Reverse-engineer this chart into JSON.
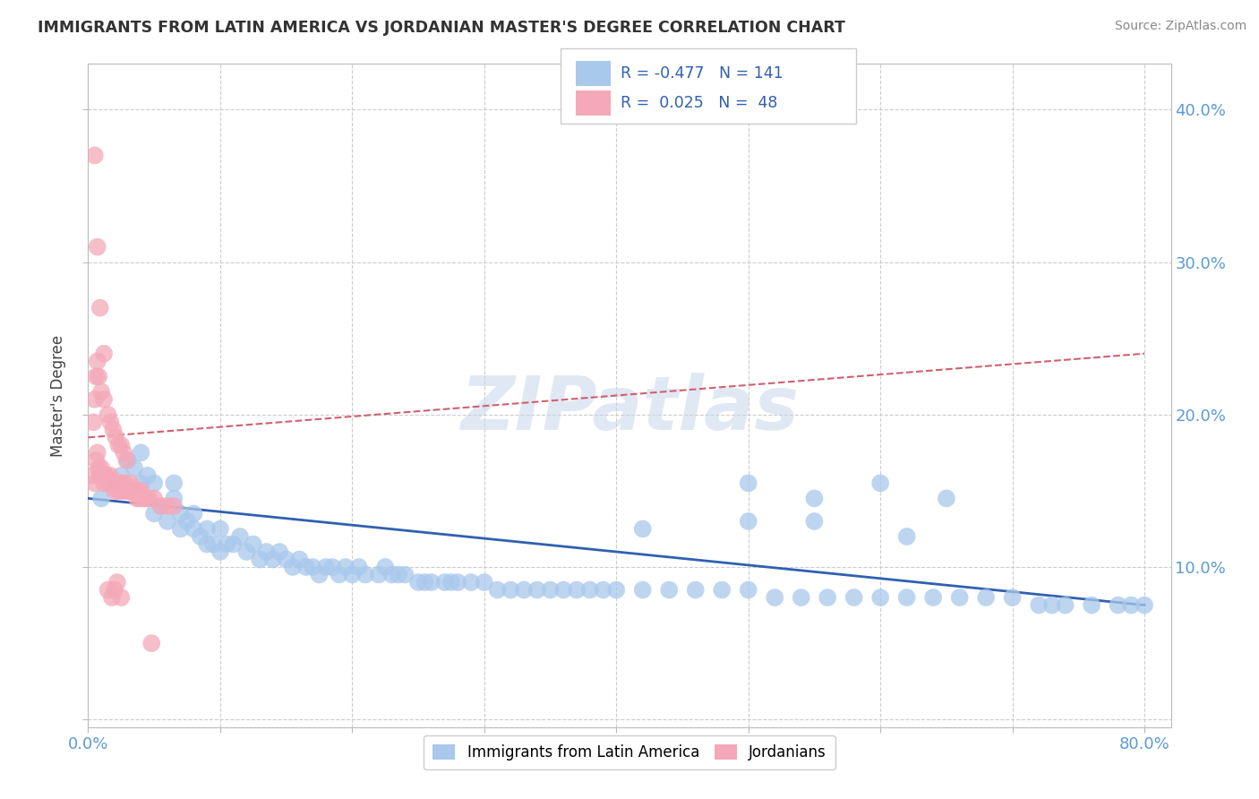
{
  "title": "IMMIGRANTS FROM LATIN AMERICA VS JORDANIAN MASTER'S DEGREE CORRELATION CHART",
  "source": "Source: ZipAtlas.com",
  "ylabel": "Master's Degree",
  "xlim": [
    0.0,
    0.82
  ],
  "ylim": [
    -0.005,
    0.43
  ],
  "xticks": [
    0.0,
    0.1,
    0.2,
    0.3,
    0.4,
    0.5,
    0.6,
    0.7,
    0.8
  ],
  "yticks": [
    0.0,
    0.1,
    0.2,
    0.3,
    0.4
  ],
  "grid_color": "#cccccc",
  "background_color": "#ffffff",
  "title_color": "#333333",
  "tick_color": "#5b9bd5",
  "watermark": "ZIPatlas",
  "legend_r1": "R = -0.477",
  "legend_n1": "N = 141",
  "legend_r2": "R =  0.025",
  "legend_n2": "N =  48",
  "series1_color": "#a8c8ec",
  "series2_color": "#f4a8b8",
  "trend1_color": "#3060b0",
  "trend2_color": "#d06070",
  "series1_label": "Immigrants from Latin America",
  "series2_label": "Jordanians",
  "blue_scatter_x": [
    0.01,
    0.02,
    0.025,
    0.03,
    0.035,
    0.04,
    0.04,
    0.045,
    0.05,
    0.05,
    0.055,
    0.06,
    0.065,
    0.065,
    0.07,
    0.07,
    0.075,
    0.08,
    0.08,
    0.085,
    0.09,
    0.09,
    0.095,
    0.1,
    0.1,
    0.105,
    0.11,
    0.115,
    0.12,
    0.125,
    0.13,
    0.135,
    0.14,
    0.145,
    0.15,
    0.155,
    0.16,
    0.165,
    0.17,
    0.175,
    0.18,
    0.185,
    0.19,
    0.195,
    0.2,
    0.205,
    0.21,
    0.22,
    0.225,
    0.23,
    0.235,
    0.24,
    0.25,
    0.255,
    0.26,
    0.27,
    0.275,
    0.28,
    0.29,
    0.3,
    0.31,
    0.32,
    0.33,
    0.34,
    0.35,
    0.36,
    0.37,
    0.38,
    0.39,
    0.4,
    0.42,
    0.44,
    0.46,
    0.48,
    0.5,
    0.52,
    0.54,
    0.56,
    0.58,
    0.6,
    0.62,
    0.64,
    0.66,
    0.68,
    0.7,
    0.72,
    0.73,
    0.74,
    0.76,
    0.78,
    0.79,
    0.8,
    0.5,
    0.55,
    0.6,
    0.65,
    0.5,
    0.42,
    0.55,
    0.62
  ],
  "blue_scatter_y": [
    0.145,
    0.155,
    0.16,
    0.17,
    0.165,
    0.155,
    0.175,
    0.16,
    0.135,
    0.155,
    0.14,
    0.13,
    0.145,
    0.155,
    0.125,
    0.135,
    0.13,
    0.125,
    0.135,
    0.12,
    0.115,
    0.125,
    0.115,
    0.11,
    0.125,
    0.115,
    0.115,
    0.12,
    0.11,
    0.115,
    0.105,
    0.11,
    0.105,
    0.11,
    0.105,
    0.1,
    0.105,
    0.1,
    0.1,
    0.095,
    0.1,
    0.1,
    0.095,
    0.1,
    0.095,
    0.1,
    0.095,
    0.095,
    0.1,
    0.095,
    0.095,
    0.095,
    0.09,
    0.09,
    0.09,
    0.09,
    0.09,
    0.09,
    0.09,
    0.09,
    0.085,
    0.085,
    0.085,
    0.085,
    0.085,
    0.085,
    0.085,
    0.085,
    0.085,
    0.085,
    0.085,
    0.085,
    0.085,
    0.085,
    0.085,
    0.08,
    0.08,
    0.08,
    0.08,
    0.08,
    0.08,
    0.08,
    0.08,
    0.08,
    0.08,
    0.075,
    0.075,
    0.075,
    0.075,
    0.075,
    0.075,
    0.075,
    0.155,
    0.145,
    0.155,
    0.145,
    0.13,
    0.125,
    0.13,
    0.12
  ],
  "pink_scatter_x": [
    0.003,
    0.005,
    0.006,
    0.007,
    0.008,
    0.009,
    0.01,
    0.011,
    0.012,
    0.013,
    0.014,
    0.015,
    0.016,
    0.017,
    0.018,
    0.019,
    0.02,
    0.021,
    0.022,
    0.023,
    0.024,
    0.025,
    0.026,
    0.027,
    0.028,
    0.029,
    0.03,
    0.031,
    0.032,
    0.033,
    0.035,
    0.036,
    0.037,
    0.038,
    0.039,
    0.04,
    0.042,
    0.044,
    0.046,
    0.048,
    0.05,
    0.055,
    0.06,
    0.065,
    0.005,
    0.007,
    0.009,
    0.012
  ],
  "pink_scatter_y": [
    0.16,
    0.155,
    0.17,
    0.175,
    0.165,
    0.16,
    0.165,
    0.16,
    0.155,
    0.16,
    0.16,
    0.155,
    0.155,
    0.16,
    0.155,
    0.155,
    0.15,
    0.155,
    0.15,
    0.155,
    0.15,
    0.155,
    0.15,
    0.15,
    0.155,
    0.15,
    0.15,
    0.15,
    0.155,
    0.15,
    0.15,
    0.15,
    0.145,
    0.15,
    0.145,
    0.15,
    0.145,
    0.145,
    0.145,
    0.05,
    0.145,
    0.14,
    0.14,
    0.14,
    0.37,
    0.31,
    0.27,
    0.24
  ],
  "pink_extra_x": [
    0.004,
    0.005,
    0.006,
    0.007,
    0.008,
    0.01,
    0.012,
    0.015,
    0.017,
    0.019,
    0.021,
    0.023,
    0.025,
    0.027,
    0.029,
    0.018,
    0.022,
    0.015,
    0.02,
    0.025
  ],
  "pink_extra_y": [
    0.195,
    0.21,
    0.225,
    0.235,
    0.225,
    0.215,
    0.21,
    0.2,
    0.195,
    0.19,
    0.185,
    0.18,
    0.18,
    0.175,
    0.17,
    0.08,
    0.09,
    0.085,
    0.085,
    0.08
  ],
  "trend1_x": [
    0.0,
    0.8
  ],
  "trend1_y": [
    0.145,
    0.075
  ],
  "trend2_x": [
    0.0,
    0.8
  ],
  "trend2_y": [
    0.185,
    0.24
  ]
}
